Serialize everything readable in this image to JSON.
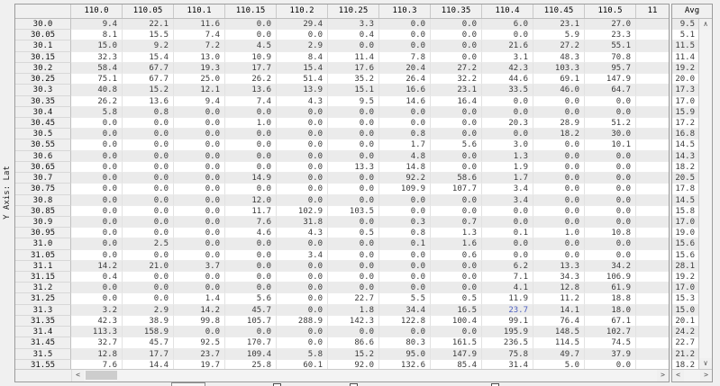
{
  "y_axis_label": "Y Axis: Lat",
  "avg_panel": {
    "header": "Avg"
  },
  "icons": {
    "scroll_left": "<",
    "scroll_right": ">",
    "scroll_up": "∧",
    "scroll_down": "∨"
  },
  "colors": {
    "stripe": "#ebebeb",
    "highlight_text": "#4d5fc0",
    "panel_border": "#9b9b9b"
  },
  "table": {
    "corner_label": "",
    "columns": [
      "110.0",
      "110.05",
      "110.1",
      "110.15",
      "110.2",
      "110.25",
      "110.3",
      "110.35",
      "110.4",
      "110.45",
      "110.5",
      "11"
    ],
    "highlight": {
      "row_index": 26,
      "col_index": 8,
      "color": "#4d5fc0"
    },
    "rows": [
      {
        "label": "30.0",
        "values": [
          "9.4",
          "22.1",
          "11.6",
          "0.0",
          "29.4",
          "3.3",
          "0.0",
          "0.0",
          "6.0",
          "23.1",
          "27.0"
        ],
        "avg": "9.5"
      },
      {
        "label": "30.05",
        "values": [
          "8.1",
          "15.5",
          "7.4",
          "0.0",
          "0.0",
          "0.4",
          "0.0",
          "0.0",
          "0.0",
          "5.9",
          "23.3"
        ],
        "avg": "5.1"
      },
      {
        "label": "30.1",
        "values": [
          "15.0",
          "9.2",
          "7.2",
          "4.5",
          "2.9",
          "0.0",
          "0.0",
          "0.0",
          "21.6",
          "27.2",
          "55.1"
        ],
        "avg": "11.5"
      },
      {
        "label": "30.15",
        "values": [
          "32.3",
          "15.4",
          "13.0",
          "10.9",
          "8.4",
          "11.4",
          "7.8",
          "0.0",
          "3.1",
          "48.3",
          "70.8"
        ],
        "avg": "11.4"
      },
      {
        "label": "30.2",
        "values": [
          "58.4",
          "67.7",
          "19.3",
          "17.7",
          "15.4",
          "17.6",
          "20.4",
          "27.2",
          "42.3",
          "103.3",
          "95.7"
        ],
        "avg": "19.2"
      },
      {
        "label": "30.25",
        "values": [
          "75.1",
          "67.7",
          "25.0",
          "26.2",
          "51.4",
          "35.2",
          "26.4",
          "32.2",
          "44.6",
          "69.1",
          "147.9"
        ],
        "avg": "20.0"
      },
      {
        "label": "30.3",
        "values": [
          "40.8",
          "15.2",
          "12.1",
          "13.6",
          "13.9",
          "15.1",
          "16.6",
          "23.1",
          "33.5",
          "46.0",
          "64.7"
        ],
        "avg": "17.3"
      },
      {
        "label": "30.35",
        "values": [
          "26.2",
          "13.6",
          "9.4",
          "7.4",
          "4.3",
          "9.5",
          "14.6",
          "16.4",
          "0.0",
          "0.0",
          "0.0"
        ],
        "avg": "17.0"
      },
      {
        "label": "30.4",
        "values": [
          "5.8",
          "0.8",
          "0.0",
          "0.0",
          "0.0",
          "0.0",
          "0.0",
          "0.0",
          "0.0",
          "0.0",
          "0.0"
        ],
        "avg": "15.9"
      },
      {
        "label": "30.45",
        "values": [
          "0.0",
          "0.0",
          "0.0",
          "1.0",
          "0.0",
          "0.0",
          "0.0",
          "0.0",
          "20.3",
          "28.9",
          "51.2"
        ],
        "avg": "17.2"
      },
      {
        "label": "30.5",
        "values": [
          "0.0",
          "0.0",
          "0.0",
          "0.0",
          "0.0",
          "0.0",
          "0.8",
          "0.0",
          "0.0",
          "18.2",
          "30.0"
        ],
        "avg": "16.8"
      },
      {
        "label": "30.55",
        "values": [
          "0.0",
          "0.0",
          "0.0",
          "0.0",
          "0.0",
          "0.0",
          "1.7",
          "5.6",
          "3.0",
          "0.0",
          "10.1"
        ],
        "avg": "14.5"
      },
      {
        "label": "30.6",
        "values": [
          "0.0",
          "0.0",
          "0.0",
          "0.0",
          "0.0",
          "0.0",
          "4.8",
          "0.0",
          "1.3",
          "0.0",
          "0.0"
        ],
        "avg": "14.3"
      },
      {
        "label": "30.65",
        "values": [
          "0.0",
          "0.0",
          "0.0",
          "0.0",
          "0.0",
          "13.3",
          "14.8",
          "0.0",
          "1.9",
          "0.0",
          "0.0"
        ],
        "avg": "18.2"
      },
      {
        "label": "30.7",
        "values": [
          "0.0",
          "0.0",
          "0.0",
          "14.9",
          "0.0",
          "0.0",
          "92.2",
          "58.6",
          "1.7",
          "0.0",
          "0.0"
        ],
        "avg": "20.5"
      },
      {
        "label": "30.75",
        "values": [
          "0.0",
          "0.0",
          "0.0",
          "0.0",
          "0.0",
          "0.0",
          "109.9",
          "107.7",
          "3.4",
          "0.0",
          "0.0"
        ],
        "avg": "17.8"
      },
      {
        "label": "30.8",
        "values": [
          "0.0",
          "0.0",
          "0.0",
          "12.0",
          "0.0",
          "0.0",
          "0.0",
          "0.0",
          "3.4",
          "0.0",
          "0.0"
        ],
        "avg": "14.5"
      },
      {
        "label": "30.85",
        "values": [
          "0.0",
          "0.0",
          "0.0",
          "11.7",
          "102.9",
          "103.5",
          "0.0",
          "0.0",
          "0.0",
          "0.0",
          "0.0"
        ],
        "avg": "15.8"
      },
      {
        "label": "30.9",
        "values": [
          "0.0",
          "0.0",
          "0.0",
          "7.6",
          "31.8",
          "0.0",
          "0.3",
          "0.7",
          "0.0",
          "0.0",
          "0.0"
        ],
        "avg": "17.0"
      },
      {
        "label": "30.95",
        "values": [
          "0.0",
          "0.0",
          "0.0",
          "4.6",
          "4.3",
          "0.5",
          "0.8",
          "1.3",
          "0.1",
          "1.0",
          "10.8"
        ],
        "avg": "19.0"
      },
      {
        "label": "31.0",
        "values": [
          "0.0",
          "2.5",
          "0.0",
          "0.0",
          "0.0",
          "0.0",
          "0.1",
          "1.6",
          "0.0",
          "0.0",
          "0.0"
        ],
        "avg": "15.6"
      },
      {
        "label": "31.05",
        "values": [
          "0.0",
          "0.0",
          "0.0",
          "0.0",
          "3.4",
          "0.0",
          "0.0",
          "0.6",
          "0.0",
          "0.0",
          "0.0"
        ],
        "avg": "15.6"
      },
      {
        "label": "31.1",
        "values": [
          "14.2",
          "21.0",
          "3.7",
          "0.0",
          "0.0",
          "0.0",
          "0.0",
          "0.0",
          "6.2",
          "13.3",
          "34.2"
        ],
        "avg": "28.1"
      },
      {
        "label": "31.15",
        "values": [
          "0.4",
          "0.0",
          "0.0",
          "0.0",
          "0.0",
          "0.0",
          "0.0",
          "0.0",
          "7.1",
          "34.3",
          "106.9"
        ],
        "avg": "19.2"
      },
      {
        "label": "31.2",
        "values": [
          "0.0",
          "0.0",
          "0.0",
          "0.0",
          "0.0",
          "0.0",
          "0.0",
          "0.0",
          "4.1",
          "12.8",
          "61.9"
        ],
        "avg": "17.0"
      },
      {
        "label": "31.25",
        "values": [
          "0.0",
          "0.0",
          "1.4",
          "5.6",
          "0.0",
          "22.7",
          "5.5",
          "0.5",
          "11.9",
          "11.2",
          "18.8"
        ],
        "avg": "15.3"
      },
      {
        "label": "31.3",
        "values": [
          "3.2",
          "2.9",
          "14.2",
          "45.7",
          "0.0",
          "1.8",
          "34.4",
          "16.5",
          "23.7",
          "14.1",
          "18.0"
        ],
        "avg": "15.0"
      },
      {
        "label": "31.35",
        "values": [
          "42.3",
          "38.9",
          "99.8",
          "105.7",
          "288.9",
          "142.3",
          "122.8",
          "100.4",
          "99.1",
          "76.4",
          "67.1"
        ],
        "avg": "20.1"
      },
      {
        "label": "31.4",
        "values": [
          "113.3",
          "158.9",
          "0.0",
          "0.0",
          "0.0",
          "0.0",
          "0.0",
          "0.0",
          "195.9",
          "148.5",
          "102.7"
        ],
        "avg": "24.2"
      },
      {
        "label": "31.45",
        "values": [
          "32.7",
          "45.7",
          "92.5",
          "170.7",
          "0.0",
          "86.6",
          "80.3",
          "161.5",
          "236.5",
          "114.5",
          "74.5"
        ],
        "avg": "22.7"
      },
      {
        "label": "31.5",
        "values": [
          "12.8",
          "17.7",
          "23.7",
          "109.4",
          "5.8",
          "15.2",
          "95.0",
          "147.9",
          "75.8",
          "49.7",
          "37.9"
        ],
        "avg": "21.2"
      },
      {
        "label": "31.55",
        "values": [
          "7.6",
          "14.4",
          "19.7",
          "25.8",
          "60.1",
          "92.0",
          "132.6",
          "85.4",
          "31.4",
          "5.0",
          "0.0"
        ],
        "avg": "18.2"
      }
    ]
  }
}
